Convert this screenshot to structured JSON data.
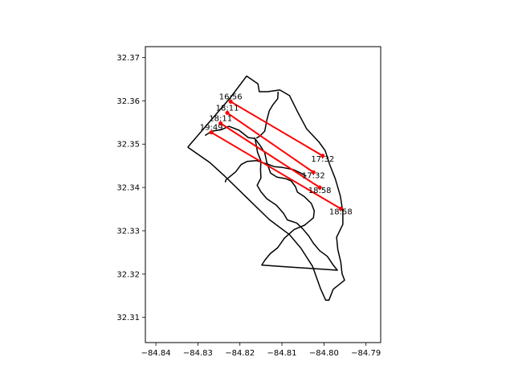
{
  "chart_data": {
    "type": "line",
    "title": "",
    "xlabel": "",
    "ylabel": "",
    "xlim": [
      -84.8425,
      -84.7865
    ],
    "ylim": [
      32.3042,
      32.3725
    ],
    "xticks": [
      -84.84,
      -84.83,
      -84.82,
      -84.81,
      -84.8,
      -84.79
    ],
    "xtick_labels": [
      "−84.84",
      "−84.83",
      "−84.82",
      "−84.81",
      "−84.80",
      "−84.79"
    ],
    "yticks": [
      32.31,
      32.32,
      32.33,
      32.34,
      32.35,
      32.36,
      32.37
    ],
    "ytick_labels": [
      "32.31",
      "32.32",
      "32.33",
      "32.34",
      "32.35",
      "32.36",
      "32.37"
    ],
    "grid": false,
    "colors": {
      "boundary": "#000000",
      "track": "#ff0000"
    },
    "boundaries": [
      {
        "points": [
          [
            -84.8324,
            32.3493
          ],
          [
            -84.8222,
            32.3608
          ],
          [
            -84.8184,
            32.3657
          ],
          [
            -84.8157,
            32.3639
          ],
          [
            -84.8154,
            32.3621
          ],
          [
            -84.8134,
            32.3621
          ],
          [
            -84.8105,
            32.3625
          ],
          [
            -84.8082,
            32.3612
          ],
          [
            -84.8063,
            32.3575
          ],
          [
            -84.8041,
            32.3535
          ],
          [
            -84.8012,
            32.3505
          ],
          [
            -84.7997,
            32.3485
          ],
          [
            -84.7986,
            32.3452
          ],
          [
            -84.7973,
            32.342
          ],
          [
            -84.7961,
            32.338
          ],
          [
            -84.7955,
            32.3343
          ],
          [
            -84.7955,
            32.3315
          ],
          [
            -84.797,
            32.3285
          ],
          [
            -84.7967,
            32.3257
          ],
          [
            -84.796,
            32.3228
          ],
          [
            -84.7957,
            32.3201
          ],
          [
            -84.7951,
            32.3186
          ],
          [
            -84.7978,
            32.3165
          ],
          [
            -84.7988,
            32.314
          ],
          [
            -84.7996,
            32.314
          ],
          [
            -84.8008,
            32.3166
          ],
          [
            -84.8027,
            32.3218
          ],
          [
            -84.8055,
            32.326
          ],
          [
            -84.8082,
            32.3291
          ],
          [
            -84.813,
            32.3326
          ],
          [
            -84.8182,
            32.3375
          ],
          [
            -84.8236,
            32.3426
          ],
          [
            -84.8271,
            32.3457
          ],
          [
            -84.8324,
            32.3493
          ]
        ]
      },
      {
        "points": [
          [
            -84.8283,
            32.352
          ],
          [
            -84.8267,
            32.353
          ],
          [
            -84.8245,
            32.3533
          ],
          [
            -84.8226,
            32.3541
          ],
          [
            -84.8202,
            32.3532
          ],
          [
            -84.818,
            32.3515
          ],
          [
            -84.8164,
            32.3513
          ],
          [
            -84.8158,
            32.3481
          ],
          [
            -84.815,
            32.3461
          ],
          [
            -84.8151,
            32.3441
          ],
          [
            -84.815,
            32.3422
          ],
          [
            -84.8159,
            32.3405
          ],
          [
            -84.815,
            32.339
          ],
          [
            -84.8136,
            32.3374
          ],
          [
            -84.8113,
            32.3359
          ],
          [
            -84.8096,
            32.334
          ],
          [
            -84.8087,
            32.3325
          ],
          [
            -84.8065,
            32.3318
          ],
          [
            -84.805,
            32.3304
          ],
          [
            -84.8036,
            32.3288
          ],
          [
            -84.8025,
            32.3271
          ],
          [
            -84.801,
            32.3254
          ],
          [
            -84.7992,
            32.3241
          ],
          [
            -84.7978,
            32.3221
          ],
          [
            -84.7968,
            32.3209
          ],
          [
            -84.8105,
            32.3218
          ],
          [
            -84.8148,
            32.3221
          ],
          [
            -84.814,
            32.3233
          ],
          [
            -84.8128,
            32.3247
          ],
          [
            -84.811,
            32.3261
          ],
          [
            -84.8094,
            32.3283
          ],
          [
            -84.8071,
            32.3303
          ],
          [
            -84.8046,
            32.3313
          ],
          [
            -84.8025,
            32.333
          ],
          [
            -84.8023,
            32.3346
          ],
          [
            -84.803,
            32.3363
          ],
          [
            -84.8047,
            32.3379
          ],
          [
            -84.8063,
            32.3389
          ],
          [
            -84.8068,
            32.3402
          ],
          [
            -84.8078,
            32.3415
          ],
          [
            -84.809,
            32.342
          ],
          [
            -84.8112,
            32.3424
          ],
          [
            -84.8127,
            32.3433
          ],
          [
            -84.8136,
            32.3458
          ],
          [
            -84.8141,
            32.348
          ],
          [
            -84.8152,
            32.3497
          ],
          [
            -84.8166,
            32.3515
          ]
        ]
      },
      {
        "points": [
          [
            -84.8109,
            32.3621
          ],
          [
            -84.811,
            32.3605
          ],
          [
            -84.8122,
            32.359
          ],
          [
            -84.813,
            32.3577
          ],
          [
            -84.8136,
            32.3555
          ],
          [
            -84.8141,
            32.353
          ],
          [
            -84.8153,
            32.3518
          ],
          [
            -84.8161,
            32.3514
          ]
        ]
      },
      {
        "points": [
          [
            -84.8235,
            32.3412
          ],
          [
            -84.8233,
            32.3418
          ],
          [
            -84.821,
            32.3436
          ],
          [
            -84.8197,
            32.3453
          ],
          [
            -84.8183,
            32.346
          ],
          [
            -84.8161,
            32.3462
          ],
          [
            -84.8138,
            32.3455
          ],
          [
            -84.8118,
            32.3448
          ],
          [
            -84.8098,
            32.3446
          ],
          [
            -84.8072,
            32.3441
          ],
          [
            -84.8055,
            32.3433
          ],
          [
            -84.8042,
            32.3426
          ]
        ]
      }
    ],
    "tracks": [
      {
        "start": [
          -84.8222,
          32.3598
        ],
        "end": [
          -84.8003,
          32.3473
        ],
        "start_label": "16:56",
        "end_label": "17:32"
      },
      {
        "start": [
          -84.823,
          32.3572
        ],
        "end": [
          -84.8025,
          32.3435
        ],
        "start_label": "18:11",
        "end_label": "17:32"
      },
      {
        "start": [
          -84.8246,
          32.3548
        ],
        "end": [
          -84.801,
          32.34
        ],
        "start_label": "18:11",
        "end_label": "18:58"
      },
      {
        "start": [
          -84.8268,
          32.3527
        ],
        "end": [
          -84.796,
          32.3351
        ],
        "start_label": "19:49",
        "end_label": "18:58"
      }
    ]
  }
}
